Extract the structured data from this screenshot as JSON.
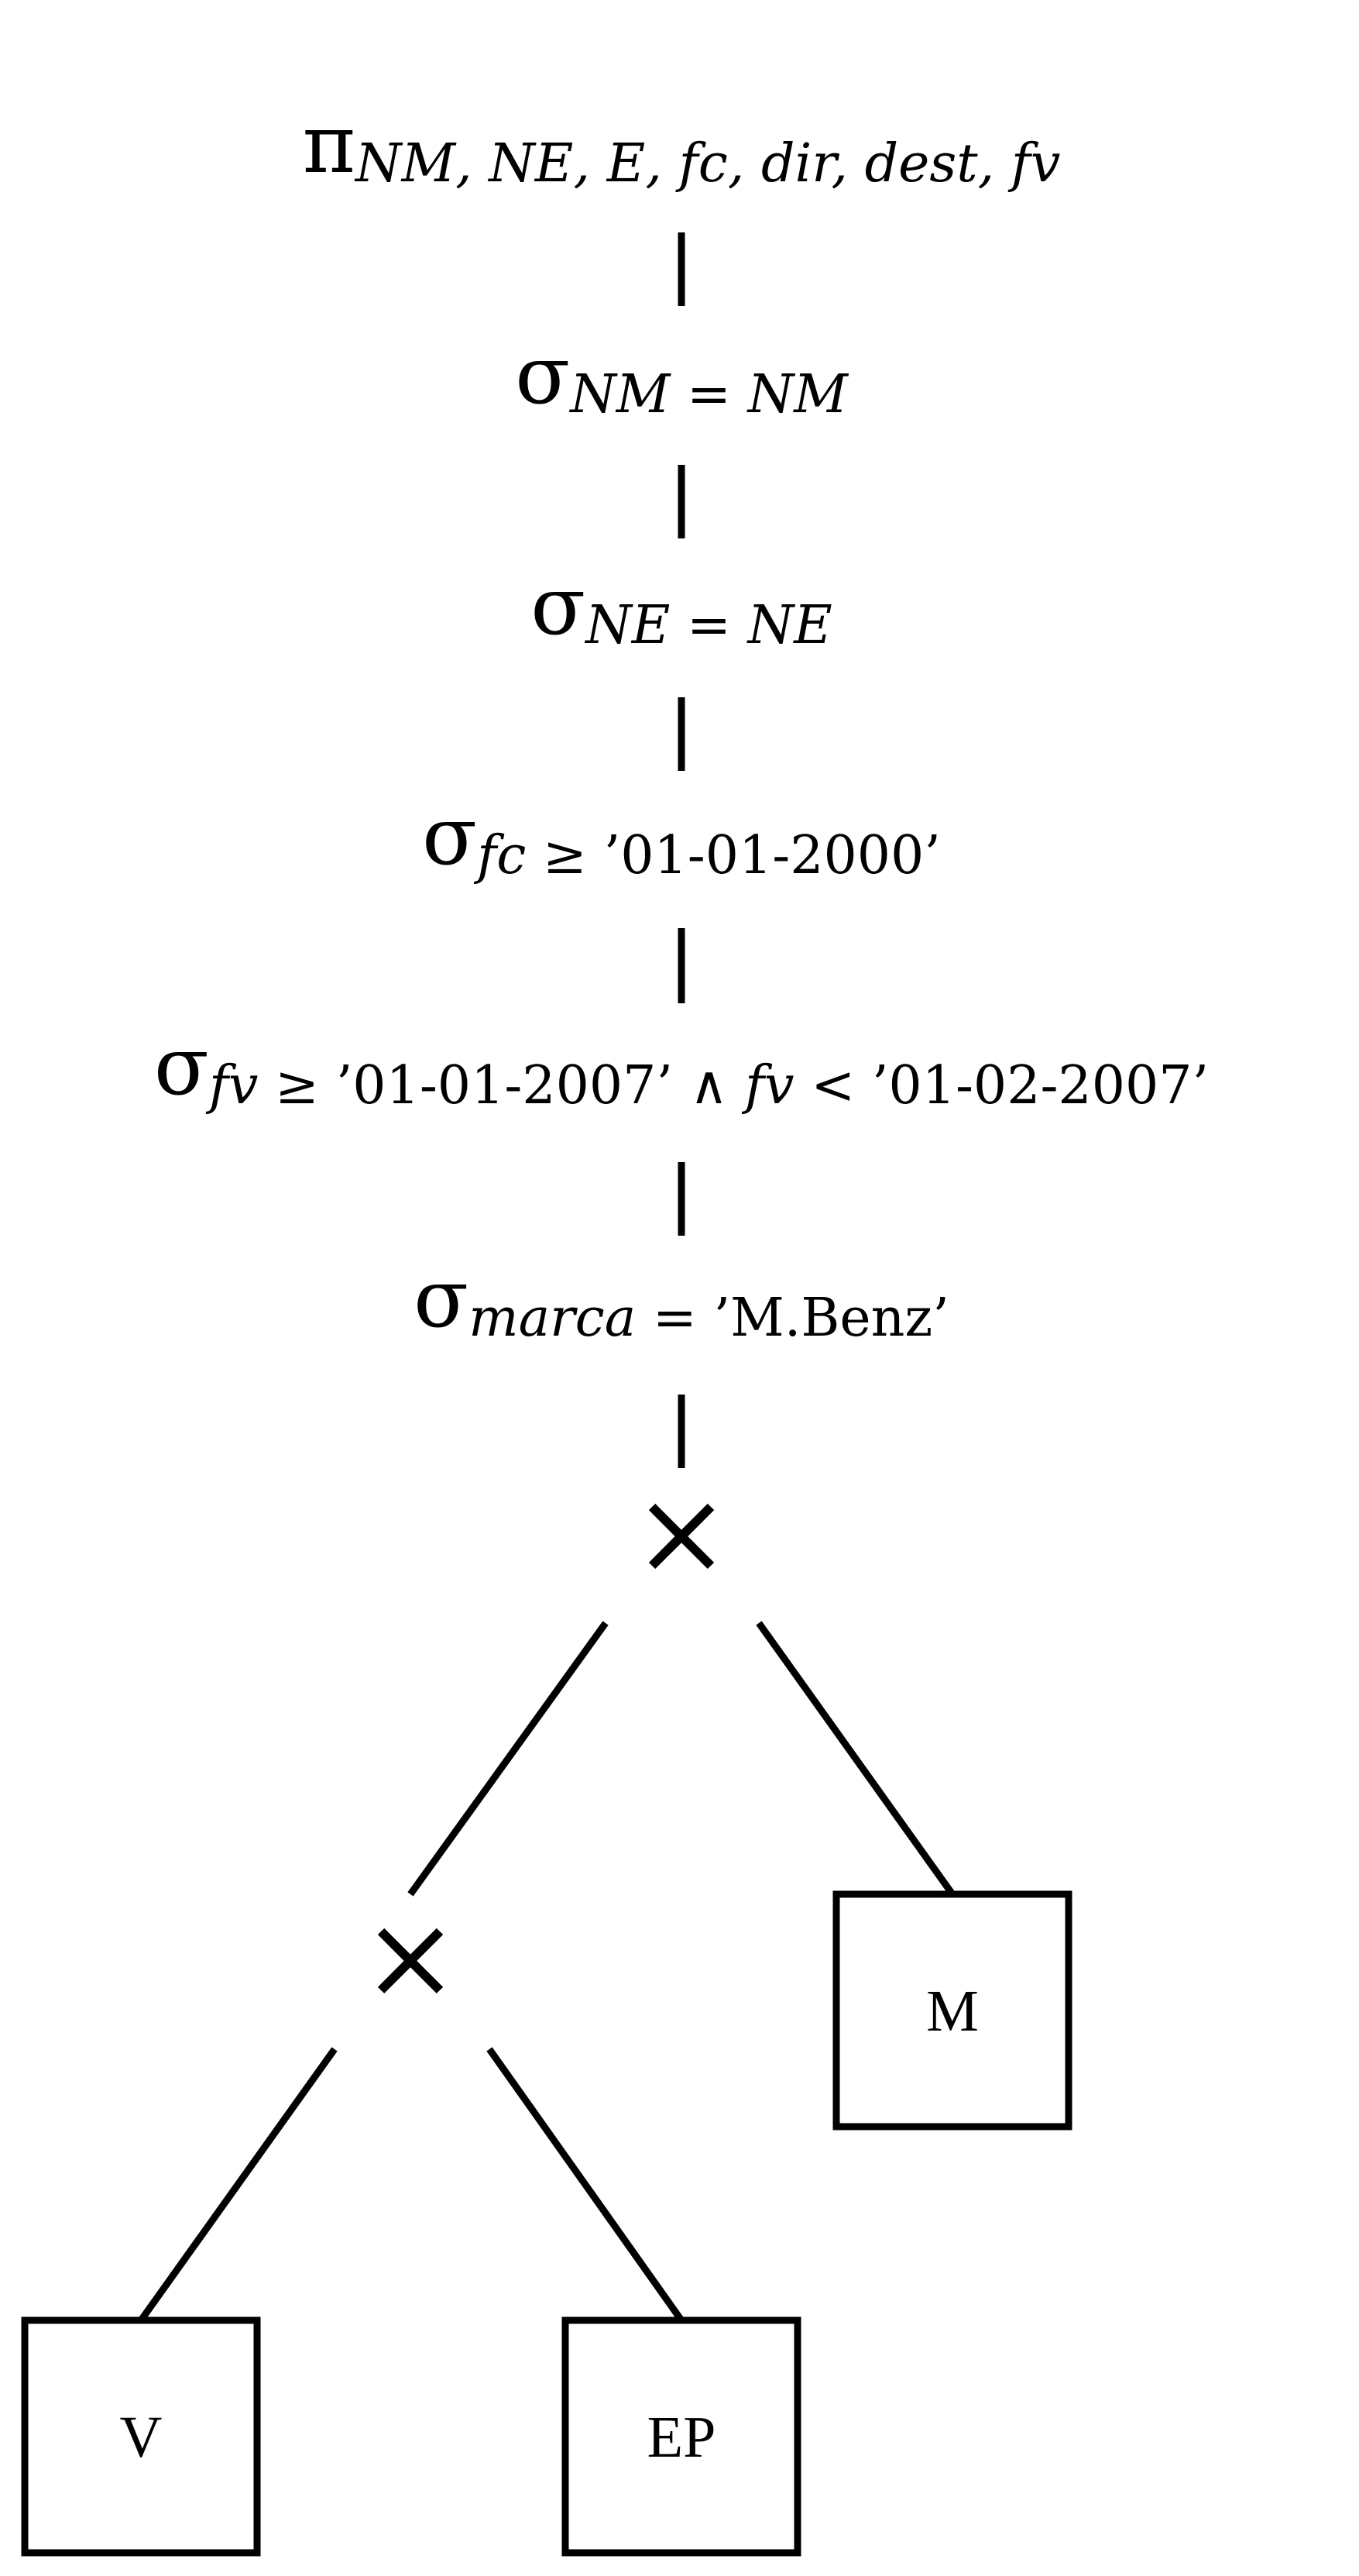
{
  "nodes": {
    "projection": {
      "symbol": "π",
      "attributes": "NM, NE, E, fc, dir, dest, fv"
    },
    "sel_nm": {
      "symbol": "σ",
      "condition": "NM = NM"
    },
    "sel_ne": {
      "symbol": "σ",
      "condition": "NE = NE"
    },
    "sel_fc": {
      "symbol": "σ",
      "attr": "fc",
      "op": " ≥ ",
      "value": "’01-01-2000’"
    },
    "sel_fv": {
      "symbol": "σ",
      "attr1": "fv",
      "op1": " ≥ ",
      "value1": "’01-01-2007’",
      "and": " ∧ ",
      "attr2": "fv",
      "op2": " < ",
      "value2": "’01-02-2007’"
    },
    "sel_marca": {
      "symbol": "σ",
      "attr": "marca",
      "op": " = ",
      "value": "’M.Benz’"
    },
    "product_top": {
      "symbol": "×"
    },
    "product_bottom": {
      "symbol": "×"
    },
    "relation_m": {
      "label": "M"
    },
    "relation_v": {
      "label": "V"
    },
    "relation_ep": {
      "label": "EP"
    }
  }
}
